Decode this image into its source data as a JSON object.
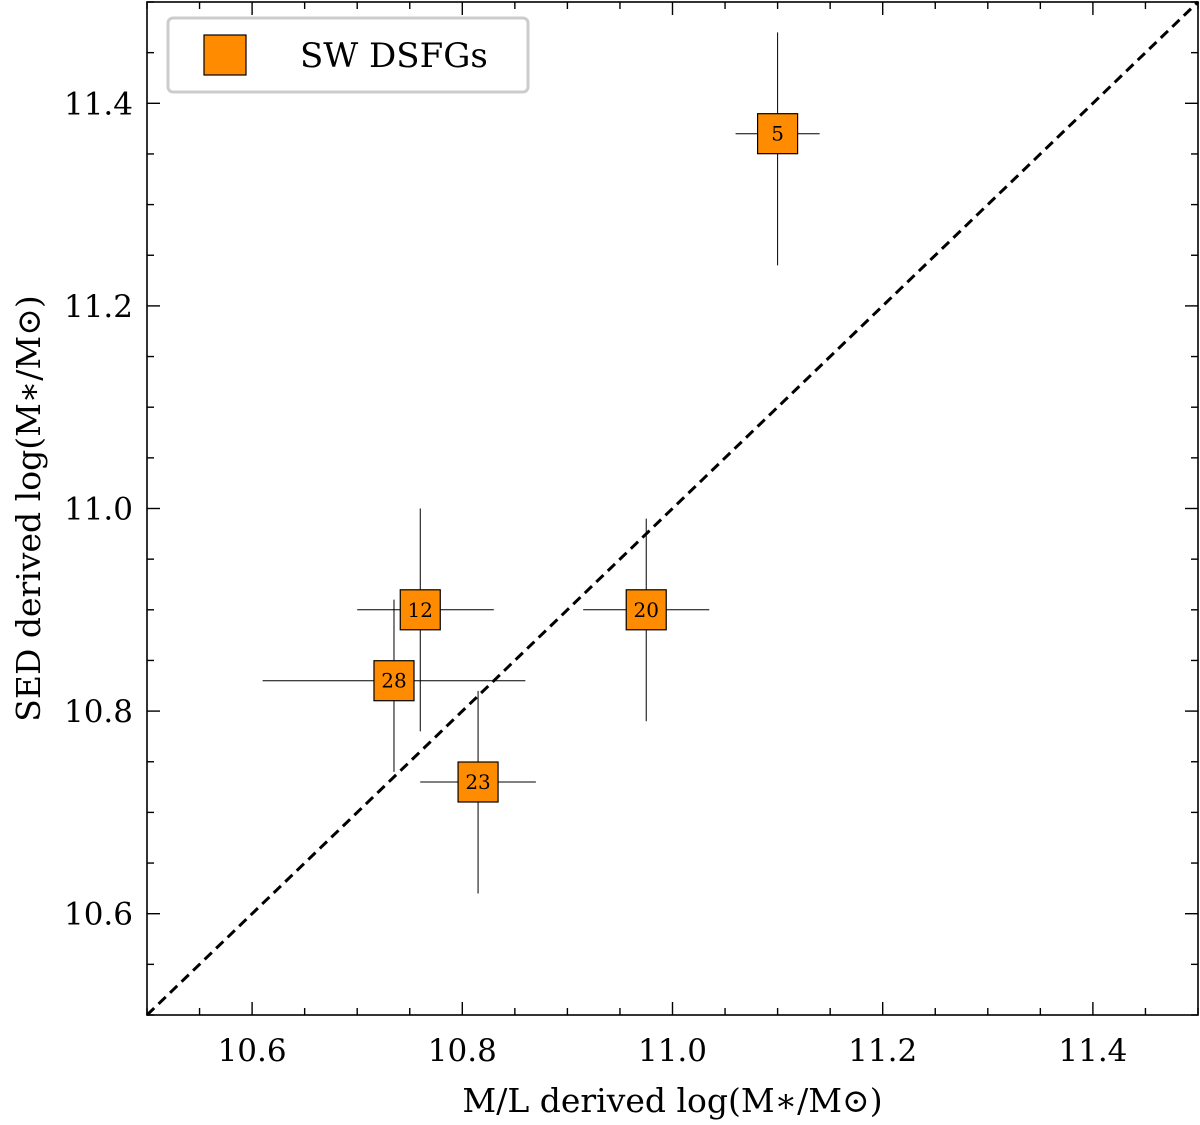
{
  "chart_data": {
    "type": "scatter",
    "xlabel": "M/L derived log(M∗/M⊙)",
    "ylabel": "SED derived log(M∗/M⊙)",
    "xlim": [
      10.5,
      11.5
    ],
    "ylim": [
      10.5,
      11.5
    ],
    "x_ticks": [
      10.6,
      10.8,
      11.0,
      11.2,
      11.4
    ],
    "y_ticks": [
      10.6,
      10.8,
      11.0,
      11.2,
      11.4
    ],
    "x_tick_labels": [
      "10.6",
      "10.8",
      "11.0",
      "11.2",
      "11.4"
    ],
    "y_tick_labels": [
      "10.6",
      "10.8",
      "11.0",
      "11.2",
      "11.4"
    ],
    "minor_tick_step": 0.05,
    "grid": false,
    "legend": {
      "position": "top-left",
      "entries": [
        "SW DSFGs"
      ]
    },
    "reference_line": {
      "style": "dashed",
      "relation": "y = x",
      "color": "#000000"
    },
    "series": [
      {
        "name": "SW DSFGs",
        "marker": "square",
        "color": "#ff8c00",
        "points": [
          {
            "label": "5",
            "x": 11.1,
            "y": 11.37,
            "xerr": [
              0.04,
              0.04
            ],
            "yerr": [
              0.13,
              0.1
            ]
          },
          {
            "label": "12",
            "x": 10.76,
            "y": 10.9,
            "xerr": [
              0.06,
              0.07
            ],
            "yerr": [
              0.12,
              0.1
            ]
          },
          {
            "label": "20",
            "x": 10.975,
            "y": 10.9,
            "xerr": [
              0.06,
              0.06
            ],
            "yerr": [
              0.11,
              0.09
            ]
          },
          {
            "label": "28",
            "x": 10.735,
            "y": 10.83,
            "xerr": [
              0.125,
              0.125
            ],
            "yerr": [
              0.09,
              0.08
            ]
          },
          {
            "label": "23",
            "x": 10.815,
            "y": 10.73,
            "xerr": [
              0.055,
              0.055
            ],
            "yerr": [
              0.11,
              0.09
            ]
          }
        ]
      }
    ]
  }
}
